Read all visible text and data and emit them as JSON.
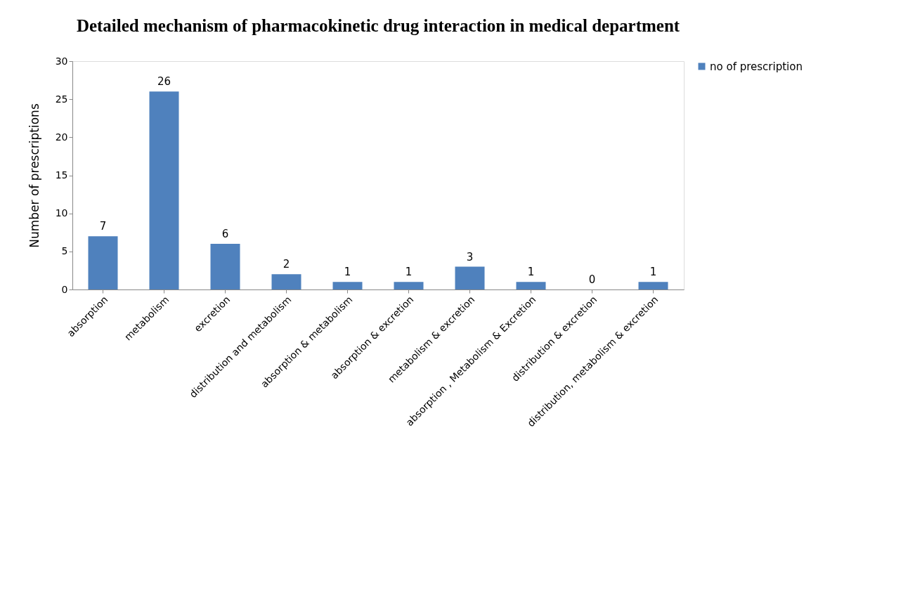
{
  "chart_data": {
    "type": "bar",
    "title": "Detailed mechanism of pharmacokinetic drug interaction in medical department",
    "ylabel": "Number of prescriptions",
    "categories": [
      "absorption",
      "metabolism",
      "excretion",
      "distribution and metabolism",
      "absorption & metabolism",
      "absorption & excretion",
      "metabolism & excretion",
      "absorption , Metabolism & Excretion",
      "distribution & excretion",
      "distribution, metabolism & excretion"
    ],
    "series": [
      {
        "name": "no of prescription",
        "color": "#4f81bd",
        "values": [
          7,
          26,
          6,
          2,
          1,
          1,
          3,
          1,
          0,
          1
        ]
      }
    ],
    "ylim": [
      0,
      30
    ],
    "yticks": [
      0,
      5,
      10,
      15,
      20,
      25,
      30
    ],
    "data_labels": true,
    "legend": "right"
  }
}
